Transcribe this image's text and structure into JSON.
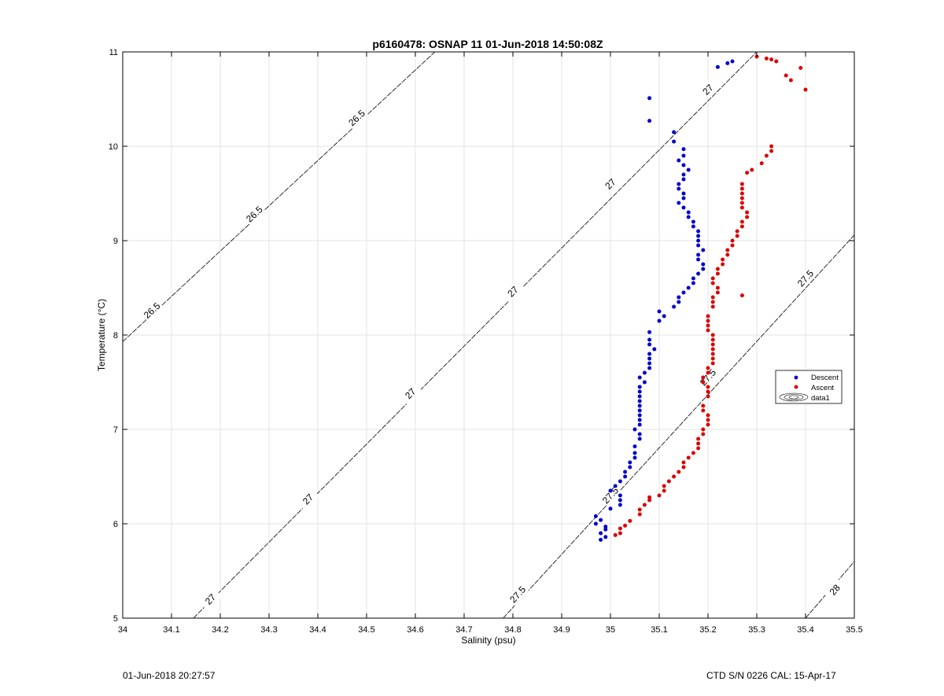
{
  "chart_data": {
    "type": "scatter",
    "title": "p6160478: OSNAP 11 01-Jun-2018 14:50:08Z",
    "xlabel": "Salinity (psu)",
    "ylabel": "Temperature (°C)",
    "xlim": [
      34,
      35.5
    ],
    "ylim": [
      5,
      11
    ],
    "xticks": [
      "34",
      "34.1",
      "34.2",
      "34.3",
      "34.4",
      "34.5",
      "34.6",
      "34.7",
      "34.8",
      "34.9",
      "35",
      "35.1",
      "35.2",
      "35.3",
      "35.4",
      "35.5"
    ],
    "yticks": [
      "5",
      "6",
      "7",
      "8",
      "9",
      "10",
      "11"
    ],
    "grid": true,
    "legend": {
      "position": "right",
      "entries": [
        "Descent",
        "Ascent",
        "data1"
      ]
    },
    "series": [
      {
        "name": "Descent",
        "color": "#0000cc",
        "points": [
          [
            34.98,
            5.83
          ],
          [
            34.99,
            5.86
          ],
          [
            34.98,
            5.9
          ],
          [
            34.99,
            5.94
          ],
          [
            34.99,
            5.97
          ],
          [
            34.97,
            6.0
          ],
          [
            34.98,
            6.04
          ],
          [
            34.97,
            6.08
          ],
          [
            35.0,
            6.16
          ],
          [
            35.02,
            6.2
          ],
          [
            35.02,
            6.25
          ],
          [
            35.02,
            6.3
          ],
          [
            35.0,
            6.35
          ],
          [
            35.01,
            6.4
          ],
          [
            35.02,
            6.45
          ],
          [
            35.03,
            6.5
          ],
          [
            35.03,
            6.55
          ],
          [
            35.04,
            6.6
          ],
          [
            35.04,
            6.65
          ],
          [
            35.05,
            6.7
          ],
          [
            35.05,
            6.75
          ],
          [
            35.05,
            6.82
          ],
          [
            35.06,
            6.9
          ],
          [
            35.06,
            6.95
          ],
          [
            35.05,
            7.0
          ],
          [
            35.06,
            7.05
          ],
          [
            35.06,
            7.1
          ],
          [
            35.06,
            7.15
          ],
          [
            35.06,
            7.2
          ],
          [
            35.06,
            7.25
          ],
          [
            35.06,
            7.3
          ],
          [
            35.06,
            7.35
          ],
          [
            35.06,
            7.4
          ],
          [
            35.06,
            7.45
          ],
          [
            35.07,
            7.5
          ],
          [
            35.06,
            7.55
          ],
          [
            35.07,
            7.6
          ],
          [
            35.08,
            7.65
          ],
          [
            35.08,
            7.7
          ],
          [
            35.08,
            7.75
          ],
          [
            35.08,
            7.8
          ],
          [
            35.09,
            7.85
          ],
          [
            35.08,
            7.9
          ],
          [
            35.08,
            7.95
          ],
          [
            35.08,
            8.03
          ],
          [
            35.1,
            8.15
          ],
          [
            35.11,
            8.2
          ],
          [
            35.1,
            8.25
          ],
          [
            35.13,
            8.3
          ],
          [
            35.14,
            8.35
          ],
          [
            35.14,
            8.4
          ],
          [
            35.15,
            8.45
          ],
          [
            35.16,
            8.5
          ],
          [
            35.17,
            8.55
          ],
          [
            35.17,
            8.6
          ],
          [
            35.18,
            8.65
          ],
          [
            35.19,
            8.7
          ],
          [
            35.19,
            8.75
          ],
          [
            35.18,
            8.8
          ],
          [
            35.18,
            8.85
          ],
          [
            35.19,
            8.9
          ],
          [
            35.18,
            8.95
          ],
          [
            35.18,
            9.0
          ],
          [
            35.18,
            9.05
          ],
          [
            35.18,
            9.1
          ],
          [
            35.17,
            9.15
          ],
          [
            35.17,
            9.2
          ],
          [
            35.16,
            9.25
          ],
          [
            35.16,
            9.3
          ],
          [
            35.15,
            9.35
          ],
          [
            35.14,
            9.4
          ],
          [
            35.15,
            9.45
          ],
          [
            35.15,
            9.5
          ],
          [
            35.14,
            9.55
          ],
          [
            35.14,
            9.6
          ],
          [
            35.15,
            9.65
          ],
          [
            35.15,
            9.7
          ],
          [
            35.16,
            9.75
          ],
          [
            35.15,
            9.8
          ],
          [
            35.14,
            9.85
          ],
          [
            35.15,
            9.9
          ],
          [
            35.15,
            9.97
          ],
          [
            35.13,
            10.05
          ],
          [
            35.13,
            10.15
          ],
          [
            35.08,
            10.27
          ],
          [
            35.08,
            10.51
          ],
          [
            35.22,
            10.84
          ],
          [
            35.24,
            10.88
          ],
          [
            35.25,
            10.9
          ]
        ]
      },
      {
        "name": "Ascent",
        "color": "#dd0000",
        "points": [
          [
            35.01,
            5.88
          ],
          [
            35.02,
            5.9
          ],
          [
            35.02,
            5.95
          ],
          [
            35.03,
            5.98
          ],
          [
            35.04,
            6.03
          ],
          [
            35.06,
            6.1
          ],
          [
            35.06,
            6.15
          ],
          [
            35.07,
            6.2
          ],
          [
            35.08,
            6.25
          ],
          [
            35.08,
            6.28
          ],
          [
            35.1,
            6.3
          ],
          [
            35.11,
            6.35
          ],
          [
            35.11,
            6.4
          ],
          [
            35.12,
            6.45
          ],
          [
            35.13,
            6.5
          ],
          [
            35.14,
            6.55
          ],
          [
            35.15,
            6.6
          ],
          [
            35.15,
            6.65
          ],
          [
            35.16,
            6.7
          ],
          [
            35.17,
            6.75
          ],
          [
            35.18,
            6.8
          ],
          [
            35.18,
            6.85
          ],
          [
            35.18,
            6.9
          ],
          [
            35.19,
            6.95
          ],
          [
            35.19,
            7.0
          ],
          [
            35.2,
            7.05
          ],
          [
            35.2,
            7.1
          ],
          [
            35.2,
            7.15
          ],
          [
            35.19,
            7.2
          ],
          [
            35.19,
            7.25
          ],
          [
            35.2,
            7.35
          ],
          [
            35.2,
            7.4
          ],
          [
            35.2,
            7.45
          ],
          [
            35.19,
            7.5
          ],
          [
            35.19,
            7.55
          ],
          [
            35.2,
            7.6
          ],
          [
            35.2,
            7.65
          ],
          [
            35.21,
            7.7
          ],
          [
            35.21,
            7.75
          ],
          [
            35.21,
            7.8
          ],
          [
            35.21,
            7.85
          ],
          [
            35.21,
            7.9
          ],
          [
            35.21,
            7.95
          ],
          [
            35.21,
            8.0
          ],
          [
            35.2,
            8.05
          ],
          [
            35.2,
            8.1
          ],
          [
            35.2,
            8.15
          ],
          [
            35.2,
            8.2
          ],
          [
            35.21,
            8.3
          ],
          [
            35.21,
            8.35
          ],
          [
            35.21,
            8.4
          ],
          [
            35.22,
            8.45
          ],
          [
            35.22,
            8.5
          ],
          [
            35.21,
            8.55
          ],
          [
            35.21,
            8.6
          ],
          [
            35.22,
            8.65
          ],
          [
            35.22,
            8.7
          ],
          [
            35.23,
            8.75
          ],
          [
            35.23,
            8.8
          ],
          [
            35.24,
            8.85
          ],
          [
            35.24,
            8.9
          ],
          [
            35.25,
            8.95
          ],
          [
            35.25,
            9.0
          ],
          [
            35.26,
            9.05
          ],
          [
            35.26,
            9.1
          ],
          [
            35.27,
            9.15
          ],
          [
            35.27,
            9.2
          ],
          [
            35.28,
            9.25
          ],
          [
            35.28,
            9.3
          ],
          [
            35.27,
            9.35
          ],
          [
            35.27,
            9.4
          ],
          [
            35.27,
            9.45
          ],
          [
            35.27,
            9.5
          ],
          [
            35.27,
            9.55
          ],
          [
            35.27,
            9.6
          ],
          [
            35.28,
            9.72
          ],
          [
            35.29,
            9.75
          ],
          [
            35.31,
            9.82
          ],
          [
            35.32,
            9.9
          ],
          [
            35.33,
            9.95
          ],
          [
            35.33,
            10.0
          ],
          [
            35.27,
            8.42
          ],
          [
            35.3,
            10.95
          ],
          [
            35.32,
            10.93
          ],
          [
            35.33,
            10.92
          ],
          [
            35.34,
            10.9
          ],
          [
            35.36,
            10.75
          ],
          [
            35.37,
            10.7
          ],
          [
            35.39,
            10.83
          ],
          [
            35.4,
            10.6
          ]
        ]
      }
    ],
    "isopycnals": [
      {
        "label": "26.5",
        "points": [
          [
            34.0,
            7.93
          ],
          [
            34.64,
            11.0
          ]
        ],
        "label_positions": [
          [
            34.06,
            8.26
          ],
          [
            34.27,
            9.28
          ],
          [
            34.48,
            10.3
          ]
        ]
      },
      {
        "label": "27",
        "points": [
          [
            34.145,
            5.0
          ],
          [
            35.3,
            11.0
          ]
        ],
        "label_positions": [
          [
            34.18,
            5.2
          ],
          [
            34.38,
            6.26
          ],
          [
            34.59,
            7.38
          ],
          [
            34.8,
            8.46
          ],
          [
            35.0,
            9.6
          ],
          [
            35.2,
            10.6
          ]
        ]
      },
      {
        "label": "27.5",
        "points": [
          [
            34.78,
            5.0
          ],
          [
            35.5,
            9.06
          ]
        ],
        "label_positions": [
          [
            34.81,
            5.25
          ],
          [
            35.0,
            6.3
          ],
          [
            35.2,
            7.55
          ],
          [
            35.4,
            8.6
          ]
        ]
      },
      {
        "label": "28",
        "points": [
          [
            35.4,
            5.0
          ],
          [
            35.5,
            5.6
          ]
        ],
        "label_positions": [
          [
            35.46,
            5.3
          ]
        ]
      }
    ]
  },
  "footer": {
    "left": "01-Jun-2018 20:27:57",
    "right": "CTD S/N 0226  CAL: 15-Apr-17"
  }
}
